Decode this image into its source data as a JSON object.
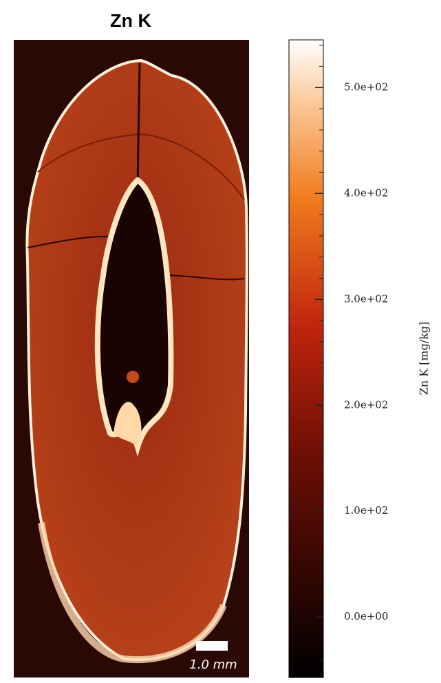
{
  "title": "Zn K",
  "colorbar": {
    "label": "Zn K  [mg/kg]",
    "lim": [
      -57,
      545
    ],
    "ticks": [
      {
        "value": 0,
        "label": "0.0e+00"
      },
      {
        "value": 100,
        "label": "1.0e+02"
      },
      {
        "value": 200,
        "label": "2.0e+02"
      },
      {
        "value": 300,
        "label": "3.0e+02"
      },
      {
        "value": 400,
        "label": "4.0e+02"
      },
      {
        "value": 500,
        "label": "5.0e+02"
      }
    ],
    "minor_ticks": [
      -40,
      -20,
      20,
      40,
      60,
      80,
      120,
      140,
      160,
      180,
      220,
      240,
      260,
      280,
      320,
      340,
      360,
      380,
      420,
      440,
      460,
      480,
      520,
      540
    ]
  },
  "scale_bar": {
    "label": "1.0 mm"
  }
}
